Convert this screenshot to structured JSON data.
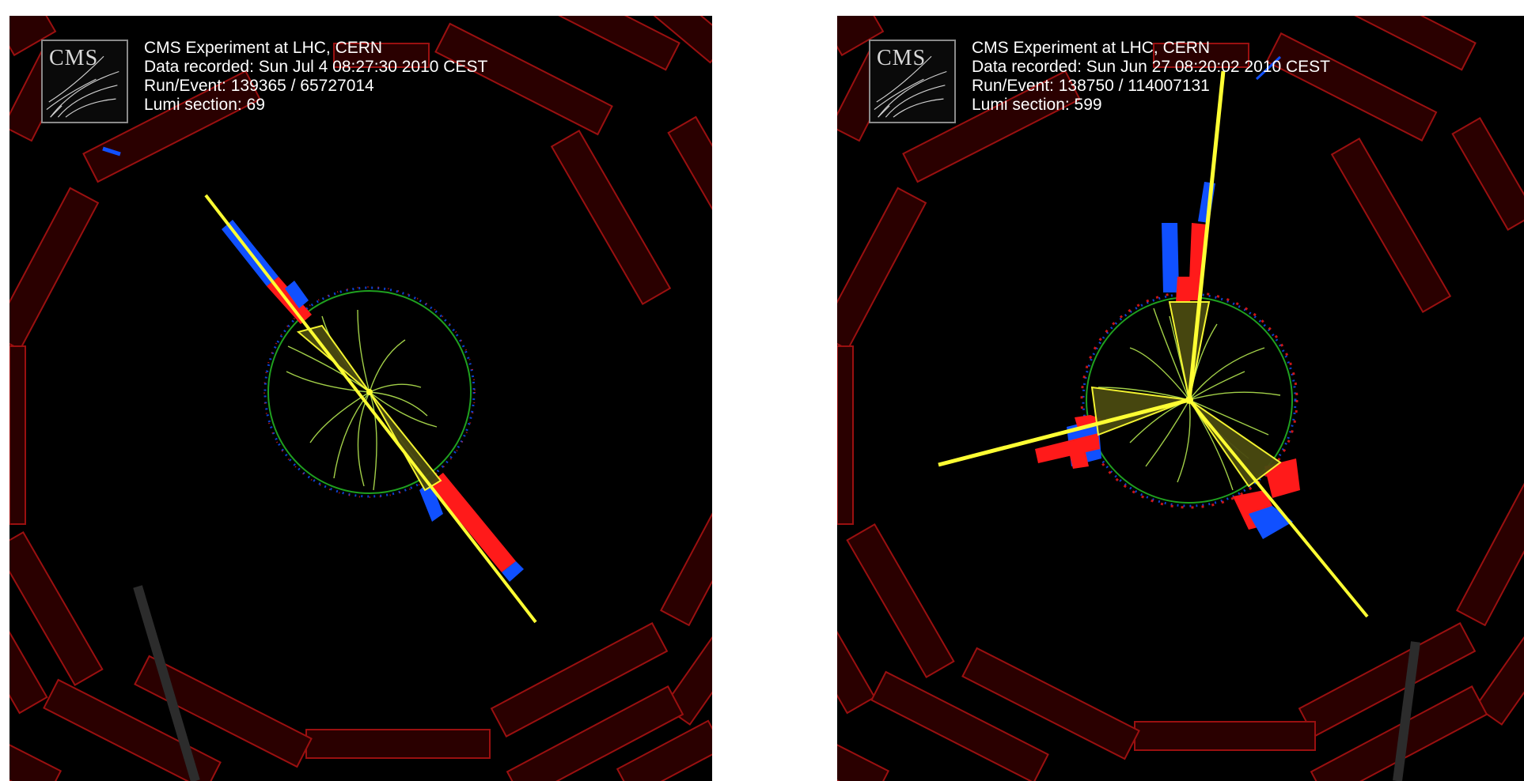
{
  "events": [
    {
      "logo": "CMS",
      "title": "CMS Experiment at LHC, CERN",
      "date_line": "Data recorded: Sun Jul  4 08:27:30 2010 CEST",
      "run_line": "Run/Event: 139365 / 65727014",
      "lumi_line": "Lumi section: 69"
    },
    {
      "logo": "CMS",
      "title": "CMS Experiment at LHC, CERN",
      "date_line": "Data recorded: Sun Jun 27 08:20:02 2010 CEST",
      "run_line": "Run/Event: 138750 / 114007131",
      "lumi_line": "Lumi section: 599"
    }
  ],
  "colors": {
    "background": "#000000",
    "muon_chamber_fill": "#2a0000",
    "muon_chamber_edge": "#9a1010",
    "jet": "#ffff33",
    "ecal_deposit": "#ff1a1a",
    "hcal_deposit": "#1050ff",
    "tracker_boundary": "#1fa01f",
    "tracks": "#b4e650",
    "beam_support": "#2c2c2c"
  }
}
